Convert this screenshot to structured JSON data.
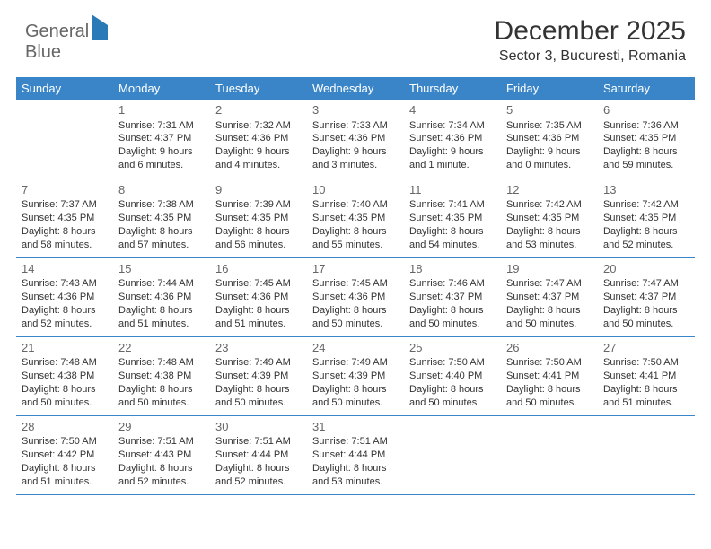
{
  "logo": {
    "word1": "General",
    "word2": "Blue"
  },
  "title": "December 2025",
  "subtitle": "Sector 3, Bucuresti, Romania",
  "columns": [
    "Sunday",
    "Monday",
    "Tuesday",
    "Wednesday",
    "Thursday",
    "Friday",
    "Saturday"
  ],
  "header_bg": "#3a85c8",
  "header_fg": "#ffffff",
  "border_color": "#3a85c8",
  "weeks": [
    [
      null,
      {
        "n": "1",
        "sunrise": "Sunrise: 7:31 AM",
        "sunset": "Sunset: 4:37 PM",
        "daylight": "Daylight: 9 hours and 6 minutes."
      },
      {
        "n": "2",
        "sunrise": "Sunrise: 7:32 AM",
        "sunset": "Sunset: 4:36 PM",
        "daylight": "Daylight: 9 hours and 4 minutes."
      },
      {
        "n": "3",
        "sunrise": "Sunrise: 7:33 AM",
        "sunset": "Sunset: 4:36 PM",
        "daylight": "Daylight: 9 hours and 3 minutes."
      },
      {
        "n": "4",
        "sunrise": "Sunrise: 7:34 AM",
        "sunset": "Sunset: 4:36 PM",
        "daylight": "Daylight: 9 hours and 1 minute."
      },
      {
        "n": "5",
        "sunrise": "Sunrise: 7:35 AM",
        "sunset": "Sunset: 4:36 PM",
        "daylight": "Daylight: 9 hours and 0 minutes."
      },
      {
        "n": "6",
        "sunrise": "Sunrise: 7:36 AM",
        "sunset": "Sunset: 4:35 PM",
        "daylight": "Daylight: 8 hours and 59 minutes."
      }
    ],
    [
      {
        "n": "7",
        "sunrise": "Sunrise: 7:37 AM",
        "sunset": "Sunset: 4:35 PM",
        "daylight": "Daylight: 8 hours and 58 minutes."
      },
      {
        "n": "8",
        "sunrise": "Sunrise: 7:38 AM",
        "sunset": "Sunset: 4:35 PM",
        "daylight": "Daylight: 8 hours and 57 minutes."
      },
      {
        "n": "9",
        "sunrise": "Sunrise: 7:39 AM",
        "sunset": "Sunset: 4:35 PM",
        "daylight": "Daylight: 8 hours and 56 minutes."
      },
      {
        "n": "10",
        "sunrise": "Sunrise: 7:40 AM",
        "sunset": "Sunset: 4:35 PM",
        "daylight": "Daylight: 8 hours and 55 minutes."
      },
      {
        "n": "11",
        "sunrise": "Sunrise: 7:41 AM",
        "sunset": "Sunset: 4:35 PM",
        "daylight": "Daylight: 8 hours and 54 minutes."
      },
      {
        "n": "12",
        "sunrise": "Sunrise: 7:42 AM",
        "sunset": "Sunset: 4:35 PM",
        "daylight": "Daylight: 8 hours and 53 minutes."
      },
      {
        "n": "13",
        "sunrise": "Sunrise: 7:42 AM",
        "sunset": "Sunset: 4:35 PM",
        "daylight": "Daylight: 8 hours and 52 minutes."
      }
    ],
    [
      {
        "n": "14",
        "sunrise": "Sunrise: 7:43 AM",
        "sunset": "Sunset: 4:36 PM",
        "daylight": "Daylight: 8 hours and 52 minutes."
      },
      {
        "n": "15",
        "sunrise": "Sunrise: 7:44 AM",
        "sunset": "Sunset: 4:36 PM",
        "daylight": "Daylight: 8 hours and 51 minutes."
      },
      {
        "n": "16",
        "sunrise": "Sunrise: 7:45 AM",
        "sunset": "Sunset: 4:36 PM",
        "daylight": "Daylight: 8 hours and 51 minutes."
      },
      {
        "n": "17",
        "sunrise": "Sunrise: 7:45 AM",
        "sunset": "Sunset: 4:36 PM",
        "daylight": "Daylight: 8 hours and 50 minutes."
      },
      {
        "n": "18",
        "sunrise": "Sunrise: 7:46 AM",
        "sunset": "Sunset: 4:37 PM",
        "daylight": "Daylight: 8 hours and 50 minutes."
      },
      {
        "n": "19",
        "sunrise": "Sunrise: 7:47 AM",
        "sunset": "Sunset: 4:37 PM",
        "daylight": "Daylight: 8 hours and 50 minutes."
      },
      {
        "n": "20",
        "sunrise": "Sunrise: 7:47 AM",
        "sunset": "Sunset: 4:37 PM",
        "daylight": "Daylight: 8 hours and 50 minutes."
      }
    ],
    [
      {
        "n": "21",
        "sunrise": "Sunrise: 7:48 AM",
        "sunset": "Sunset: 4:38 PM",
        "daylight": "Daylight: 8 hours and 50 minutes."
      },
      {
        "n": "22",
        "sunrise": "Sunrise: 7:48 AM",
        "sunset": "Sunset: 4:38 PM",
        "daylight": "Daylight: 8 hours and 50 minutes."
      },
      {
        "n": "23",
        "sunrise": "Sunrise: 7:49 AM",
        "sunset": "Sunset: 4:39 PM",
        "daylight": "Daylight: 8 hours and 50 minutes."
      },
      {
        "n": "24",
        "sunrise": "Sunrise: 7:49 AM",
        "sunset": "Sunset: 4:39 PM",
        "daylight": "Daylight: 8 hours and 50 minutes."
      },
      {
        "n": "25",
        "sunrise": "Sunrise: 7:50 AM",
        "sunset": "Sunset: 4:40 PM",
        "daylight": "Daylight: 8 hours and 50 minutes."
      },
      {
        "n": "26",
        "sunrise": "Sunrise: 7:50 AM",
        "sunset": "Sunset: 4:41 PM",
        "daylight": "Daylight: 8 hours and 50 minutes."
      },
      {
        "n": "27",
        "sunrise": "Sunrise: 7:50 AM",
        "sunset": "Sunset: 4:41 PM",
        "daylight": "Daylight: 8 hours and 51 minutes."
      }
    ],
    [
      {
        "n": "28",
        "sunrise": "Sunrise: 7:50 AM",
        "sunset": "Sunset: 4:42 PM",
        "daylight": "Daylight: 8 hours and 51 minutes."
      },
      {
        "n": "29",
        "sunrise": "Sunrise: 7:51 AM",
        "sunset": "Sunset: 4:43 PM",
        "daylight": "Daylight: 8 hours and 52 minutes."
      },
      {
        "n": "30",
        "sunrise": "Sunrise: 7:51 AM",
        "sunset": "Sunset: 4:44 PM",
        "daylight": "Daylight: 8 hours and 52 minutes."
      },
      {
        "n": "31",
        "sunrise": "Sunrise: 7:51 AM",
        "sunset": "Sunset: 4:44 PM",
        "daylight": "Daylight: 8 hours and 53 minutes."
      },
      null,
      null,
      null
    ]
  ]
}
